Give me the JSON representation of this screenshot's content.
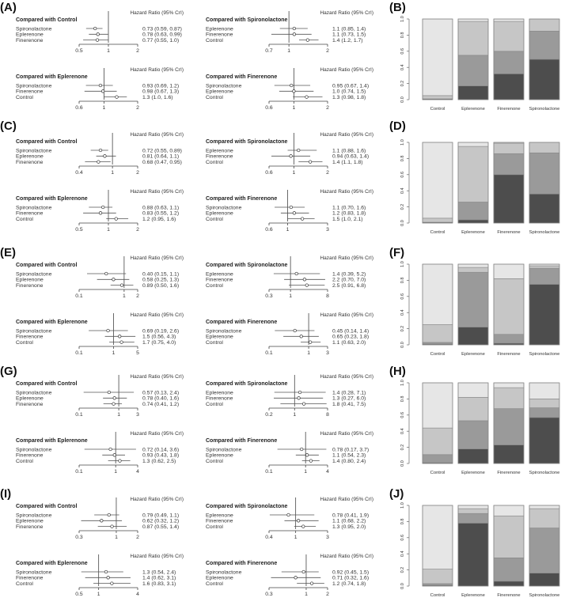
{
  "header_label": "Hazard Ratio (95% CrI)",
  "colors": {
    "rank1": "#4d4d4d",
    "rank2": "#9a9a9a",
    "rank3": "#c6c6c6",
    "rank4": "#e6e6e6",
    "line": "#555555"
  },
  "chart_data": [
    {
      "forest_label": "(A)",
      "bar_label": "(B)",
      "forest": [
        {
          "type": "forest",
          "title": "Compared with Control",
          "ticks": [
            0.5,
            1,
            2
          ],
          "rows": [
            {
              "name": "Spironolactone",
              "hr": 0.73,
              "lo": 0.59,
              "hi": 0.87,
              "ci": "0.73 (0.59, 0.87)"
            },
            {
              "name": "Eplerenone",
              "hr": 0.78,
              "lo": 0.63,
              "hi": 0.99,
              "ci": "0.78 (0.63, 0.99)"
            },
            {
              "name": "Finerenone",
              "hr": 0.77,
              "lo": 0.55,
              "hi": 1.0,
              "ci": "0.77 (0.55, 1.0)"
            }
          ]
        },
        {
          "type": "forest",
          "title": "Compared with Spironolactone",
          "ticks": [
            0.7,
            1,
            2
          ],
          "rows": [
            {
              "name": "Eplerenone",
              "hr": 1.1,
              "lo": 0.85,
              "hi": 1.4,
              "ci": "1.1 (0.85, 1.4)"
            },
            {
              "name": "Finerenone",
              "hr": 1.1,
              "lo": 0.73,
              "hi": 1.5,
              "ci": "1.1 (0.73, 1.5)"
            },
            {
              "name": "Control",
              "hr": 1.4,
              "lo": 1.2,
              "hi": 1.7,
              "ci": "1.4 (1.2, 1.7)"
            }
          ]
        },
        {
          "type": "forest",
          "title": "Compared with Eplerenone",
          "ticks": [
            0.6,
            1,
            2
          ],
          "rows": [
            {
              "name": "Spironolactone",
              "hr": 0.93,
              "lo": 0.69,
              "hi": 1.2,
              "ci": "0.93 (0.69, 1.2)"
            },
            {
              "name": "Finerenone",
              "hr": 0.98,
              "lo": 0.67,
              "hi": 1.3,
              "ci": "0.98 (0.67, 1.3)"
            },
            {
              "name": "Control",
              "hr": 1.3,
              "lo": 1.0,
              "hi": 1.6,
              "ci": "1.3 (1.0, 1.6)"
            }
          ]
        },
        {
          "type": "forest",
          "title": "Compared with Finerenone",
          "ticks": [
            0.6,
            1,
            2
          ],
          "rows": [
            {
              "name": "Spironolactone",
              "hr": 0.95,
              "lo": 0.67,
              "hi": 1.4,
              "ci": "0.95 (0.67, 1.4)"
            },
            {
              "name": "Eplerenone",
              "hr": 1.0,
              "lo": 0.74,
              "hi": 1.5,
              "ci": "1.0 (0.74, 1.5)"
            },
            {
              "name": "Control",
              "hr": 1.3,
              "lo": 0.98,
              "hi": 1.8,
              "ci": "1.3 (0.98, 1.8)"
            }
          ]
        }
      ],
      "bar": {
        "type": "bar",
        "stacked": true,
        "categories": [
          "Control",
          "Eplerenone",
          "Finerenone",
          "Spironolactone"
        ],
        "yticks": [
          "0.0",
          "0.2",
          "0.4",
          "0.6",
          "0.8",
          "1.0"
        ],
        "ylim": [
          0,
          1
        ],
        "segments": [
          [
            0.01,
            0.0,
            0.04,
            0.95
          ],
          [
            0.17,
            0.38,
            0.42,
            0.03
          ],
          [
            0.32,
            0.28,
            0.37,
            0.03
          ],
          [
            0.5,
            0.35,
            0.15,
            0.0
          ]
        ]
      }
    },
    {
      "forest_label": "(C)",
      "bar_label": "(D)",
      "forest": [
        {
          "type": "forest",
          "title": "Compared with Control",
          "ticks": [
            0.4,
            1,
            2
          ],
          "rows": [
            {
              "name": "Spironolactone",
              "hr": 0.72,
              "lo": 0.55,
              "hi": 0.89,
              "ci": "0.72 (0.55, 0.89)"
            },
            {
              "name": "Eplerenone",
              "hr": 0.81,
              "lo": 0.64,
              "hi": 1.1,
              "ci": "0.81 (0.64, 1.1)"
            },
            {
              "name": "Finerenone",
              "hr": 0.68,
              "lo": 0.47,
              "hi": 0.95,
              "ci": "0.68 (0.47, 0.95)"
            }
          ]
        },
        {
          "type": "forest",
          "title": "Compared with Spironolactone",
          "ticks": [
            0.6,
            1,
            2
          ],
          "rows": [
            {
              "name": "Eplerenone",
              "hr": 1.1,
              "lo": 0.88,
              "hi": 1.6,
              "ci": "1.1 (0.88, 1.6)"
            },
            {
              "name": "Finerenone",
              "hr": 0.94,
              "lo": 0.63,
              "hi": 1.4,
              "ci": "0.94 (0.63, 1.4)"
            },
            {
              "name": "Control",
              "hr": 1.4,
              "lo": 1.1,
              "hi": 1.8,
              "ci": "1.4 (1.1, 1.8)"
            }
          ]
        },
        {
          "type": "forest",
          "title": "Compared with Eplerenone",
          "ticks": [
            0.5,
            1,
            2
          ],
          "rows": [
            {
              "name": "Spironolactone",
              "hr": 0.88,
              "lo": 0.63,
              "hi": 1.1,
              "ci": "0.88 (0.63, 1.1)"
            },
            {
              "name": "Finerenone",
              "hr": 0.83,
              "lo": 0.55,
              "hi": 1.2,
              "ci": "0.83 (0.55, 1.2)"
            },
            {
              "name": "Control",
              "hr": 1.2,
              "lo": 0.95,
              "hi": 1.6,
              "ci": "1.2 (0.95, 1.6)"
            }
          ]
        },
        {
          "type": "forest",
          "title": "Compared with Finerenone",
          "ticks": [
            0.6,
            1,
            3
          ],
          "rows": [
            {
              "name": "Spironolactone",
              "hr": 1.1,
              "lo": 0.7,
              "hi": 1.6,
              "ci": "1.1 (0.70, 1.6)"
            },
            {
              "name": "Eplerenone",
              "hr": 1.2,
              "lo": 0.83,
              "hi": 1.8,
              "ci": "1.2 (0.83, 1.8)"
            },
            {
              "name": "Control",
              "hr": 1.5,
              "lo": 1.0,
              "hi": 2.1,
              "ci": "1.5 (1.0, 2.1)"
            }
          ]
        }
      ],
      "bar": {
        "type": "bar",
        "stacked": true,
        "categories": [
          "Control",
          "Eplerenone",
          "Finerenone",
          "Spironolactone"
        ],
        "yticks": [
          "0.0",
          "0.2",
          "0.4",
          "0.6",
          "0.8",
          "1.0"
        ],
        "ylim": [
          0,
          1
        ],
        "segments": [
          [
            0.01,
            0.0,
            0.05,
            0.94
          ],
          [
            0.04,
            0.22,
            0.69,
            0.05
          ],
          [
            0.6,
            0.26,
            0.13,
            0.01
          ],
          [
            0.36,
            0.51,
            0.13,
            0.0
          ]
        ]
      }
    },
    {
      "forest_label": "(E)",
      "bar_label": "(F)",
      "forest": [
        {
          "type": "forest",
          "title": "Compared with Control",
          "ticks": [
            0.1,
            1,
            2
          ],
          "rows": [
            {
              "name": "Spironolactone",
              "hr": 0.4,
              "lo": 0.15,
              "hi": 1.1,
              "ci": "0.40 (0.15, 1.1)"
            },
            {
              "name": "Eplerenone",
              "hr": 0.58,
              "lo": 0.25,
              "hi": 1.3,
              "ci": "0.58 (0.25, 1.3)"
            },
            {
              "name": "Finerenone",
              "hr": 0.89,
              "lo": 0.5,
              "hi": 1.6,
              "ci": "0.89 (0.50, 1.6)"
            }
          ]
        },
        {
          "type": "forest",
          "title": "Compared with Spironolactone",
          "ticks": [
            0.3,
            1,
            8
          ],
          "rows": [
            {
              "name": "Eplerenone",
              "hr": 1.4,
              "lo": 0.39,
              "hi": 5.2,
              "ci": "1.4 (0.39, 5.2)"
            },
            {
              "name": "Finerenone",
              "hr": 2.2,
              "lo": 0.7,
              "hi": 7.0,
              "ci": "2.2 (0.70, 7.0)"
            },
            {
              "name": "Control",
              "hr": 2.5,
              "lo": 0.91,
              "hi": 6.8,
              "ci": "2.5 (0.91, 6.8)"
            }
          ]
        },
        {
          "type": "forest",
          "title": "Compared with Eplerenone",
          "ticks": [
            0.1,
            1,
            5
          ],
          "rows": [
            {
              "name": "Spironolactone",
              "hr": 0.69,
              "lo": 0.19,
              "hi": 2.6,
              "ci": "0.69 (0.19, 2.6)"
            },
            {
              "name": "Finerenone",
              "hr": 1.5,
              "lo": 0.56,
              "hi": 4.3,
              "ci": "1.5 (0.56, 4.3)"
            },
            {
              "name": "Control",
              "hr": 1.7,
              "lo": 0.75,
              "hi": 4.0,
              "ci": "1.7 (0.75, 4.0)"
            }
          ]
        },
        {
          "type": "forest",
          "title": "Compared with Finerenone",
          "ticks": [
            0.1,
            1,
            3
          ],
          "rows": [
            {
              "name": "Spironolactone",
              "hr": 0.45,
              "lo": 0.14,
              "hi": 1.4,
              "ci": "0.45 (0.14, 1.4)"
            },
            {
              "name": "Eplerenone",
              "hr": 0.65,
              "lo": 0.23,
              "hi": 1.8,
              "ci": "0.65 (0.23, 1.8)"
            },
            {
              "name": "Control",
              "hr": 1.1,
              "lo": 0.63,
              "hi": 2.0,
              "ci": "1.1 (0.63, 2.0)"
            }
          ]
        }
      ],
      "bar": {
        "type": "bar",
        "stacked": true,
        "categories": [
          "Control",
          "Eplerenone",
          "Finerenone",
          "Spironolactone"
        ],
        "yticks": [
          "0.0",
          "0.2",
          "0.4",
          "0.6",
          "0.8",
          "1.0"
        ],
        "ylim": [
          0,
          1
        ],
        "segments": [
          [
            0.01,
            0.02,
            0.22,
            0.75
          ],
          [
            0.22,
            0.68,
            0.06,
            0.04
          ],
          [
            0.02,
            0.11,
            0.69,
            0.18
          ],
          [
            0.75,
            0.2,
            0.03,
            0.02
          ]
        ]
      }
    },
    {
      "forest_label": "(G)",
      "bar_label": "(H)",
      "forest": [
        {
          "type": "forest",
          "title": "Compared with Control",
          "ticks": [
            0.1,
            1,
            3
          ],
          "rows": [
            {
              "name": "Spironolactone",
              "hr": 0.57,
              "lo": 0.13,
              "hi": 2.4,
              "ci": "0.57 (0.13, 2.4)"
            },
            {
              "name": "Eplerenone",
              "hr": 0.78,
              "lo": 0.4,
              "hi": 1.6,
              "ci": "0.78 (0.40, 1.6)"
            },
            {
              "name": "Finerenone",
              "hr": 0.74,
              "lo": 0.41,
              "hi": 1.2,
              "ci": "0.74 (0.41, 1.2)"
            }
          ]
        },
        {
          "type": "forest",
          "title": "Compared with Spironolactone",
          "ticks": [
            0.2,
            1,
            8
          ],
          "rows": [
            {
              "name": "Eplerenone",
              "hr": 1.4,
              "lo": 0.28,
              "hi": 7.1,
              "ci": "1.4 (0.28, 7.1)"
            },
            {
              "name": "Finerenone",
              "hr": 1.3,
              "lo": 0.27,
              "hi": 6.0,
              "ci": "1.3 (0.27, 6.0)"
            },
            {
              "name": "Control",
              "hr": 1.8,
              "lo": 0.41,
              "hi": 7.5,
              "ci": "1.8 (0.41, 7.5)"
            }
          ]
        },
        {
          "type": "forest",
          "title": "Compared with Eplerenone",
          "ticks": [
            0.1,
            1,
            4
          ],
          "rows": [
            {
              "name": "Spironolactone",
              "hr": 0.72,
              "lo": 0.14,
              "hi": 3.6,
              "ci": "0.72 (0.14, 3.6)"
            },
            {
              "name": "Finerenone",
              "hr": 0.93,
              "lo": 0.43,
              "hi": 1.8,
              "ci": "0.93 (0.43, 1.8)"
            },
            {
              "name": "Control",
              "hr": 1.3,
              "lo": 0.62,
              "hi": 2.5,
              "ci": "1.3 (0.62, 2.5)"
            }
          ]
        },
        {
          "type": "forest",
          "title": "Compared with Finerenone",
          "ticks": [
            0.1,
            1,
            4
          ],
          "rows": [
            {
              "name": "Spironolactone",
              "hr": 0.78,
              "lo": 0.17,
              "hi": 3.7,
              "ci": "0.78 (0.17, 3.7)"
            },
            {
              "name": "Eplerenone",
              "hr": 1.1,
              "lo": 0.54,
              "hi": 2.3,
              "ci": "1.1 (0.54, 2.3)"
            },
            {
              "name": "Control",
              "hr": 1.4,
              "lo": 0.8,
              "hi": 2.4,
              "ci": "1.4 (0.80, 2.4)"
            }
          ]
        }
      ],
      "bar": {
        "type": "bar",
        "stacked": true,
        "categories": [
          "Control",
          "Eplerenone",
          "Finerenone",
          "Spironolactone"
        ],
        "yticks": [
          "0.0",
          "0.2",
          "0.4",
          "0.6",
          "0.8",
          "1.0"
        ],
        "ylim": [
          0,
          1
        ],
        "segments": [
          [
            0.01,
            0.1,
            0.33,
            0.56
          ],
          [
            0.18,
            0.35,
            0.29,
            0.18
          ],
          [
            0.23,
            0.45,
            0.26,
            0.06
          ],
          [
            0.57,
            0.12,
            0.11,
            0.2
          ]
        ]
      }
    },
    {
      "forest_label": "(I)",
      "bar_label": "(J)",
      "forest": [
        {
          "type": "forest",
          "title": "Compared with Control",
          "ticks": [
            0.3,
            1,
            2
          ],
          "rows": [
            {
              "name": "Spironolactone",
              "hr": 0.79,
              "lo": 0.49,
              "hi": 1.1,
              "ci": "0.79 (0.49, 1.1)"
            },
            {
              "name": "Eplerenone",
              "hr": 0.62,
              "lo": 0.32,
              "hi": 1.2,
              "ci": "0.62 (0.32, 1.2)"
            },
            {
              "name": "Finerenone",
              "hr": 0.87,
              "lo": 0.55,
              "hi": 1.4,
              "ci": "0.87 (0.55, 1.4)"
            }
          ]
        },
        {
          "type": "forest",
          "title": "Compared with Spironolactone",
          "ticks": [
            0.4,
            1,
            3
          ],
          "rows": [
            {
              "name": "Eplerenone",
              "hr": 0.78,
              "lo": 0.41,
              "hi": 1.9,
              "ci": "0.78 (0.41, 1.9)"
            },
            {
              "name": "Finerenone",
              "hr": 1.1,
              "lo": 0.68,
              "hi": 2.2,
              "ci": "1.1 (0.68, 2.2)"
            },
            {
              "name": "Control",
              "hr": 1.3,
              "lo": 0.95,
              "hi": 2.0,
              "ci": "1.3 (0.95, 2.0)"
            }
          ]
        },
        {
          "type": "forest",
          "title": "Compared with Eplerenone",
          "ticks": [
            0.5,
            1,
            4
          ],
          "rows": [
            {
              "name": "Spironolactone",
              "hr": 1.3,
              "lo": 0.54,
              "hi": 2.4,
              "ci": "1.3 (0.54, 2.4)"
            },
            {
              "name": "Finerenone",
              "hr": 1.4,
              "lo": 0.62,
              "hi": 3.1,
              "ci": "1.4 (0.62, 3.1)"
            },
            {
              "name": "Control",
              "hr": 1.6,
              "lo": 0.83,
              "hi": 3.1,
              "ci": "1.6 (0.83, 3.1)"
            }
          ]
        },
        {
          "type": "forest",
          "title": "Compared with Finerenone",
          "ticks": [
            0.3,
            1,
            2
          ],
          "rows": [
            {
              "name": "Spironolactone",
              "hr": 0.92,
              "lo": 0.45,
              "hi": 1.5,
              "ci": "0.92 (0.45, 1.5)"
            },
            {
              "name": "Eplerenone",
              "hr": 0.71,
              "lo": 0.32,
              "hi": 1.6,
              "ci": "0.71 (0.32, 1.6)"
            },
            {
              "name": "Control",
              "hr": 1.2,
              "lo": 0.74,
              "hi": 1.8,
              "ci": "1.2 (0.74, 1.8)"
            }
          ]
        }
      ],
      "bar": {
        "type": "bar",
        "stacked": true,
        "categories": [
          "Control",
          "Eplerenone",
          "Finerenone",
          "Spironolactone"
        ],
        "yticks": [
          "0.0",
          "0.2",
          "0.4",
          "0.6",
          "0.8",
          "1.0"
        ],
        "ylim": [
          0,
          1
        ],
        "segments": [
          [
            0.01,
            0.02,
            0.18,
            0.79
          ],
          [
            0.78,
            0.12,
            0.06,
            0.04
          ],
          [
            0.06,
            0.29,
            0.52,
            0.13
          ],
          [
            0.16,
            0.56,
            0.24,
            0.04
          ]
        ]
      }
    }
  ]
}
